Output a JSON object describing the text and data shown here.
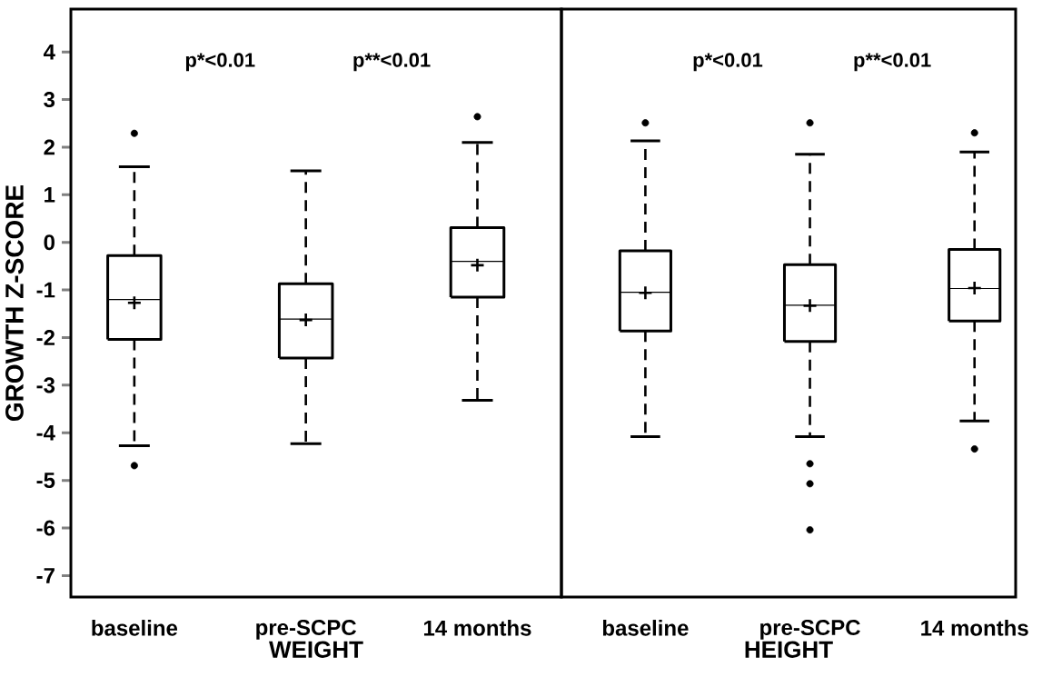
{
  "chart_data": [
    {
      "type": "box",
      "ylabel": "GROWTH Z-SCORE",
      "xlabel": "WEIGHT",
      "categories": [
        "baseline",
        "pre-SCPC",
        "14 months"
      ],
      "boxes": [
        {
          "low": -4.27,
          "q1": -2.04,
          "median": -1.2,
          "q3": -0.28,
          "high": 1.59,
          "mean": -1.27,
          "outliers": [
            2.29,
            -4.69
          ]
        },
        {
          "low": -4.23,
          "q1": -2.43,
          "median": -1.61,
          "q3": -0.87,
          "high": 1.5,
          "mean": -1.63
        },
        {
          "low": -3.32,
          "q1": -1.15,
          "median": -0.4,
          "q3": 0.31,
          "high": 2.1,
          "mean": -0.48,
          "outliers": [
            2.64
          ]
        }
      ],
      "ylim": [
        -7.45,
        4.9
      ],
      "yticks": [
        -7,
        -6,
        -5,
        -4,
        -3,
        -2,
        -1,
        0,
        1,
        2,
        3,
        4
      ],
      "annotations": [
        "p*<0.01",
        "p**<0.01"
      ]
    },
    {
      "type": "box",
      "xlabel": "HEIGHT",
      "categories": [
        "baseline",
        "pre-SCPC",
        "14 months"
      ],
      "boxes": [
        {
          "low": -4.08,
          "q1": -1.86,
          "median": -1.05,
          "q3": -0.18,
          "high": 2.13,
          "mean": -1.06,
          "outliers": [
            2.51
          ]
        },
        {
          "low": -4.08,
          "q1": -2.08,
          "median": -1.32,
          "q3": -0.47,
          "high": 1.85,
          "mean": -1.33,
          "outliers": [
            2.51,
            -4.65,
            -5.07,
            -6.04
          ]
        },
        {
          "low": -3.75,
          "q1": -1.65,
          "median": -0.97,
          "q3": -0.15,
          "high": 1.9,
          "mean": -0.96,
          "outliers": [
            2.3,
            -4.34
          ]
        }
      ],
      "ylim": [
        -7.45,
        4.9
      ],
      "yticks": [
        -7,
        -6,
        -5,
        -4,
        -3,
        -2,
        -1,
        0,
        1,
        2,
        3,
        4
      ],
      "tick_labels": "x",
      "annotations": [
        "p*<0.01",
        "p**<0.01"
      ]
    }
  ]
}
